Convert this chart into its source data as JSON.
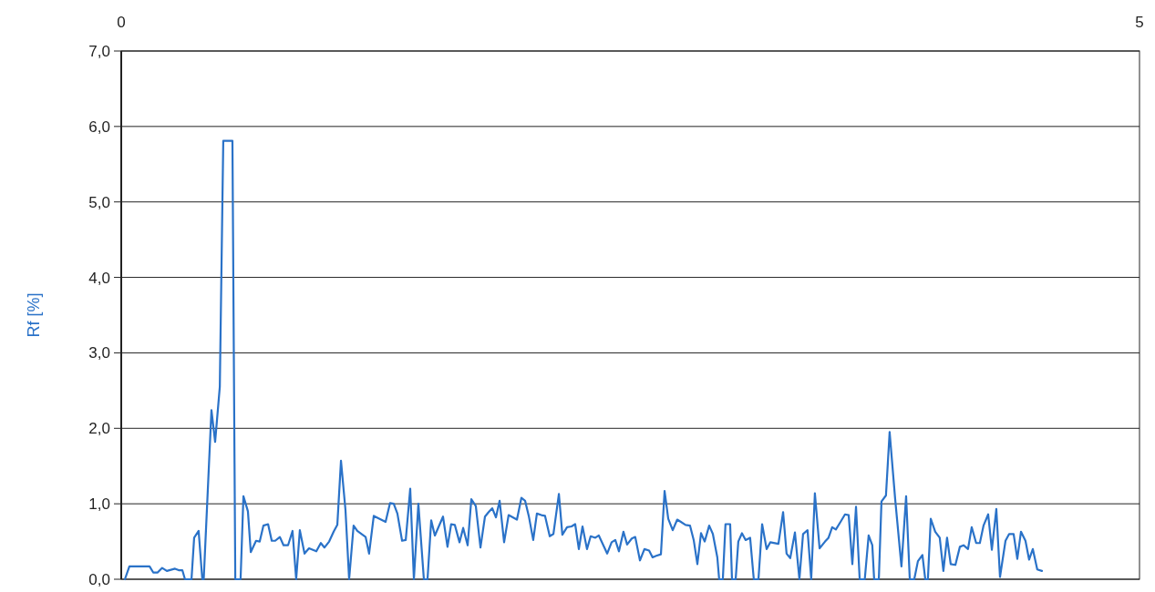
{
  "chart_data": {
    "type": "line",
    "ylabel": "Rf [%]",
    "xlim": [
      0,
      5
    ],
    "xticks": [
      0,
      5
    ],
    "ylim": [
      0,
      7
    ],
    "yticks": [
      {
        "value": 0,
        "label": "0,0"
      },
      {
        "value": 1,
        "label": "1,0"
      },
      {
        "value": 2,
        "label": "2,0"
      },
      {
        "value": 3,
        "label": "3,0"
      },
      {
        "value": 4,
        "label": "4,0"
      },
      {
        "value": 5,
        "label": "5,0"
      },
      {
        "value": 6,
        "label": "6,0"
      },
      {
        "value": 7,
        "label": "7,0"
      }
    ],
    "grid": "y",
    "marker": "none",
    "line_style": "solid",
    "series": [
      {
        "color": "#2a72c8",
        "x": [
          0.018,
          0.04,
          0.139,
          0.157,
          0.179,
          0.201,
          0.224,
          0.264,
          0.282,
          0.3,
          0.313,
          0.345,
          0.358,
          0.38,
          0.398,
          0.405,
          0.443,
          0.461,
          0.484,
          0.501,
          0.546,
          0.56,
          0.586,
          0.6,
          0.622,
          0.636,
          0.662,
          0.68,
          0.698,
          0.721,
          0.739,
          0.756,
          0.779,
          0.797,
          0.819,
          0.841,
          0.859,
          0.877,
          0.9,
          0.922,
          0.958,
          0.98,
          0.998,
          1.021,
          1.043,
          1.061,
          1.079,
          1.101,
          1.119,
          1.141,
          1.159,
          1.2,
          1.217,
          1.24,
          1.298,
          1.32,
          1.338,
          1.356,
          1.379,
          1.397,
          1.419,
          1.437,
          1.459,
          1.486,
          1.504,
          1.522,
          1.54,
          1.58,
          1.602,
          1.62,
          1.638,
          1.661,
          1.679,
          1.701,
          1.719,
          1.741,
          1.764,
          1.786,
          1.804,
          1.822,
          1.84,
          1.858,
          1.88,
          1.902,
          1.943,
          1.965,
          1.983,
          2.001,
          2.023,
          2.041,
          2.063,
          2.081,
          2.104,
          2.122,
          2.149,
          2.166,
          2.189,
          2.211,
          2.229,
          2.247,
          2.265,
          2.287,
          2.305,
          2.328,
          2.345,
          2.386,
          2.408,
          2.426,
          2.444,
          2.466,
          2.484,
          2.507,
          2.524,
          2.547,
          2.569,
          2.592,
          2.609,
          2.627,
          2.65,
          2.668,
          2.686,
          2.708,
          2.73,
          2.748,
          2.771,
          2.793,
          2.811,
          2.829,
          2.847,
          2.865,
          2.887,
          2.905,
          2.927,
          2.936,
          2.954,
          2.967,
          2.99,
          2.999,
          3.017,
          3.03,
          3.048,
          3.066,
          3.088,
          3.106,
          3.129,
          3.147,
          3.169,
          3.187,
          3.227,
          3.25,
          3.267,
          3.285,
          3.308,
          3.33,
          3.348,
          3.37,
          3.388,
          3.406,
          3.429,
          3.456,
          3.473,
          3.491,
          3.509,
          3.532,
          3.554,
          3.572,
          3.59,
          3.608,
          3.626,
          3.651,
          3.67,
          3.688,
          3.697,
          3.72,
          3.733,
          3.755,
          3.773,
          3.8,
          3.831,
          3.854,
          3.872,
          3.894,
          3.912,
          3.934,
          3.948,
          3.961,
          3.975,
          3.997,
          4.019,
          4.037,
          4.055,
          4.073,
          4.096,
          4.118,
          4.136,
          4.158,
          4.176,
          4.198,
          4.216,
          4.234,
          4.257,
          4.275,
          4.297,
          4.315,
          4.342,
          4.36,
          4.382,
          4.4,
          4.418,
          4.44,
          4.458,
          4.476,
          4.498,
          4.521
        ],
        "values": [
          0,
          0.17,
          0.17,
          0.09,
          0.09,
          0.15,
          0.11,
          0.14,
          0.12,
          0.12,
          0,
          0,
          0.55,
          0.64,
          0,
          0,
          2.24,
          1.82,
          2.55,
          5.81,
          5.81,
          0,
          0,
          1.1,
          0.9,
          0.36,
          0.51,
          0.5,
          0.71,
          0.73,
          0.51,
          0.51,
          0.56,
          0.45,
          0.45,
          0.64,
          0,
          0.65,
          0.34,
          0.41,
          0.37,
          0.48,
          0.42,
          0.5,
          0.63,
          0.72,
          1.57,
          0.92,
          0,
          0.71,
          0.64,
          0.56,
          0.34,
          0.84,
          0.76,
          1.01,
          1.0,
          0.87,
          0.51,
          0.52,
          1.2,
          0,
          1.0,
          0,
          0,
          0.78,
          0.58,
          0.83,
          0.43,
          0.73,
          0.72,
          0.49,
          0.68,
          0.45,
          1.06,
          0.97,
          0.42,
          0.83,
          0.89,
          0.94,
          0.82,
          1.04,
          0.49,
          0.85,
          0.79,
          1.08,
          1.04,
          0.84,
          0.52,
          0.87,
          0.85,
          0.84,
          0.57,
          0.6,
          1.13,
          0.59,
          0.69,
          0.7,
          0.73,
          0.4,
          0.7,
          0.4,
          0.57,
          0.55,
          0.58,
          0.34,
          0.49,
          0.52,
          0.37,
          0.63,
          0.46,
          0.54,
          0.56,
          0.25,
          0.4,
          0.38,
          0.29,
          0.31,
          0.33,
          1.17,
          0.8,
          0.65,
          0.79,
          0.76,
          0.72,
          0.71,
          0.52,
          0.2,
          0.61,
          0.5,
          0.71,
          0.6,
          0.29,
          0,
          0,
          0.73,
          0.73,
          0,
          0,
          0.5,
          0.61,
          0.52,
          0.55,
          0,
          0,
          0.73,
          0.4,
          0.49,
          0.47,
          0.89,
          0.34,
          0.28,
          0.62,
          0,
          0.6,
          0.65,
          0,
          1.14,
          0.41,
          0.5,
          0.55,
          0.69,
          0.66,
          0.76,
          0.86,
          0.85,
          0.2,
          0.96,
          0,
          0,
          0.58,
          0.45,
          0,
          0,
          1.03,
          1.11,
          1.95,
          1.07,
          0.17,
          1.1,
          0,
          0,
          0.24,
          0.32,
          0,
          0,
          0.8,
          0.63,
          0.55,
          0.11,
          0.55,
          0.2,
          0.19,
          0.43,
          0.45,
          0.4,
          0.69,
          0.48,
          0.48,
          0.71,
          0.86,
          0.39,
          0.93,
          0.03,
          0.51,
          0.6,
          0.6,
          0.27,
          0.63,
          0.51,
          0.26,
          0.4,
          0.13,
          0.11
        ]
      }
    ]
  }
}
